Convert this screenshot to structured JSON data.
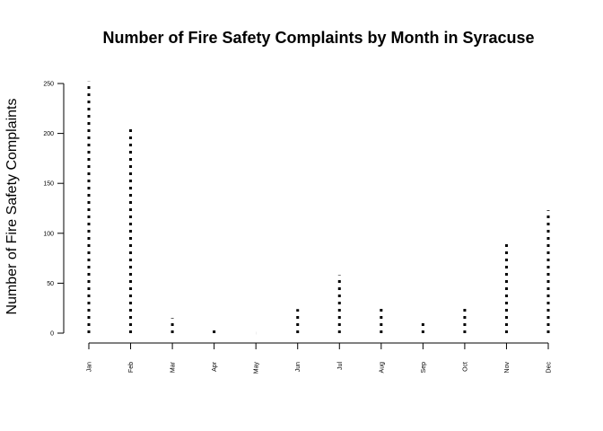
{
  "chart_data": {
    "type": "bar",
    "title": "Number of Fire Safety Complaints by Month in Syracuse",
    "xlabel": "",
    "ylabel": "Number of Fire Safety Complaints",
    "categories": [
      "Jan",
      "Feb",
      "Mar",
      "Apr",
      "May",
      "Jun",
      "Jul",
      "Aug",
      "Sep",
      "Oct",
      "Nov",
      "Dec"
    ],
    "values": [
      252,
      207,
      15,
      5,
      0,
      24,
      58,
      26,
      12,
      26,
      91,
      123
    ],
    "ylim": [
      0,
      250
    ],
    "yticks": [
      0,
      50,
      100,
      150,
      200,
      250
    ],
    "grid": false,
    "style": "dotted vertical lines"
  }
}
